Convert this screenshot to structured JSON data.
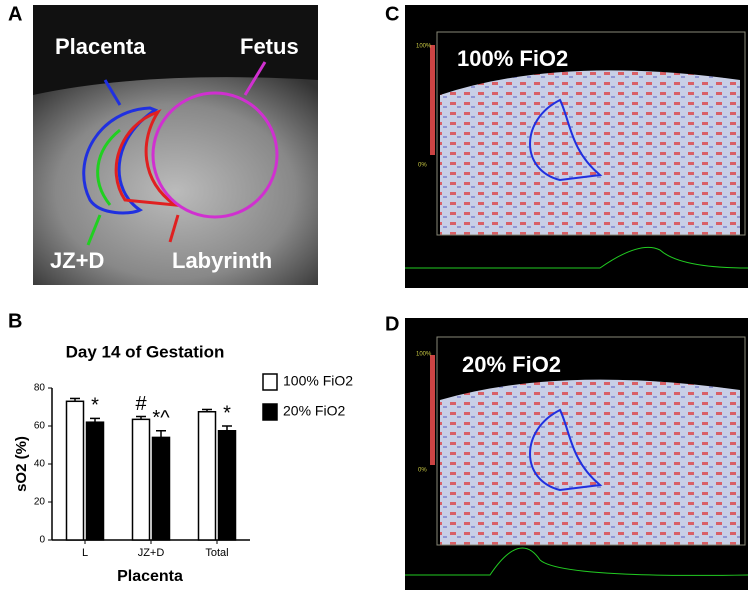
{
  "panels": {
    "a": {
      "label": "A",
      "placenta": "Placenta",
      "fetus": "Fetus",
      "jzd": "JZ+D",
      "labyrinth": "Labyrinth"
    },
    "b": {
      "label": "B"
    },
    "c": {
      "label": "C",
      "condition": "100% FiO2",
      "scale_top": "100%",
      "scale_bottom": "0%"
    },
    "d": {
      "label": "D",
      "condition": "20% FiO2",
      "scale_top": "100%",
      "scale_bottom": "0%"
    }
  },
  "chart_data": {
    "type": "bar",
    "title": "Day 14 of Gestation",
    "x_label": "Placenta",
    "y_label": "sO2 (%)",
    "categories": [
      "L",
      "JZ+D",
      "Total"
    ],
    "series": [
      {
        "name": "100% FiO2",
        "color": "#ffffff",
        "values": [
          73,
          63.5,
          67.5
        ],
        "errors": [
          1.5,
          1.5,
          1.2
        ],
        "markers": [
          null,
          "#",
          null
        ]
      },
      {
        "name": "20% FiO2",
        "color": "#000000",
        "values": [
          62,
          54,
          57.5
        ],
        "errors": [
          2,
          3.5,
          2.5
        ],
        "markers": [
          "*",
          "*^",
          "*"
        ]
      }
    ],
    "ylim": [
      0,
      80
    ],
    "yticks": [
      0,
      20,
      40,
      60,
      80
    ]
  }
}
